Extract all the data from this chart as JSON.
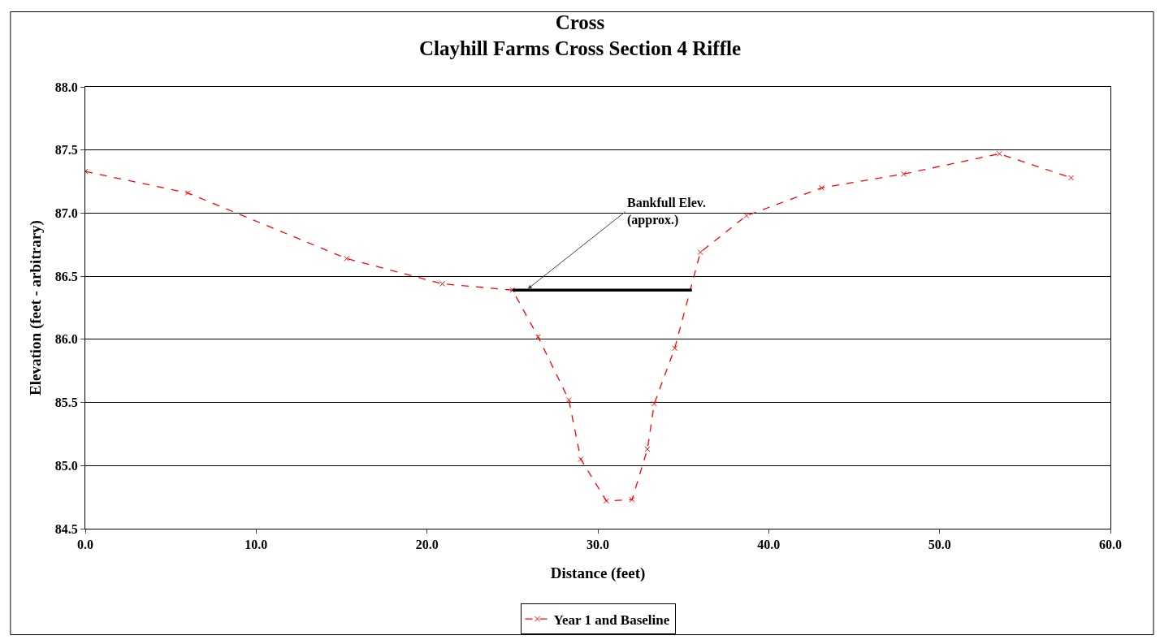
{
  "chart_data": {
    "type": "line",
    "title": "Cross\nClayhill Farms Cross Section 4 Riffle",
    "xlabel": "Distance (feet)",
    "ylabel": "Elevation (feet - arbitrary)",
    "x": [
      0.0,
      6.0,
      15.3,
      20.9,
      25.0,
      26.5,
      28.3,
      29.0,
      30.5,
      32.0,
      32.9,
      33.3,
      34.5,
      36.0,
      38.7,
      43.1,
      47.9,
      53.5,
      57.7
    ],
    "series": [
      {
        "name": "Year 1 and Baseline",
        "color": "#ff0000",
        "values": [
          87.33,
          87.16,
          86.64,
          86.44,
          86.39,
          86.02,
          85.52,
          85.05,
          84.72,
          84.73,
          85.13,
          85.49,
          85.93,
          86.69,
          86.98,
          87.2,
          87.31,
          87.47,
          87.28
        ]
      },
      {
        "type": "line",
        "color": "#000000",
        "x": [
          25.0,
          35.5
        ],
        "values": [
          86.39,
          86.39
        ],
        "marker": "none",
        "line_style": "solid"
      }
    ],
    "annotations": [
      {
        "text": "Bankfull Elev.\n(approx.)",
        "x": 25.9,
        "y": 86.4
      }
    ],
    "xlim": [
      0,
      60
    ],
    "xticks": [
      {
        "value": 0,
        "label": "0.0"
      },
      {
        "value": 10,
        "label": "10.0"
      },
      {
        "value": 20,
        "label": "20.0"
      },
      {
        "value": 30,
        "label": "30.0"
      },
      {
        "value": 40,
        "label": "40.0"
      },
      {
        "value": 50,
        "label": "50.0"
      },
      {
        "value": 60,
        "label": "60.0"
      }
    ],
    "ylim": [
      84.5,
      88.0
    ],
    "yticks": [
      84.5,
      {
        "value": 85,
        "label": "85.0"
      },
      85.5,
      {
        "value": 86,
        "label": "86.0"
      },
      86.5,
      {
        "value": 87,
        "label": "87.0"
      },
      87.5,
      {
        "value": 88,
        "label": "88.0"
      }
    ],
    "grid": "y",
    "legend": "bottom",
    "marker": "cross",
    "line_style": "dashed"
  }
}
